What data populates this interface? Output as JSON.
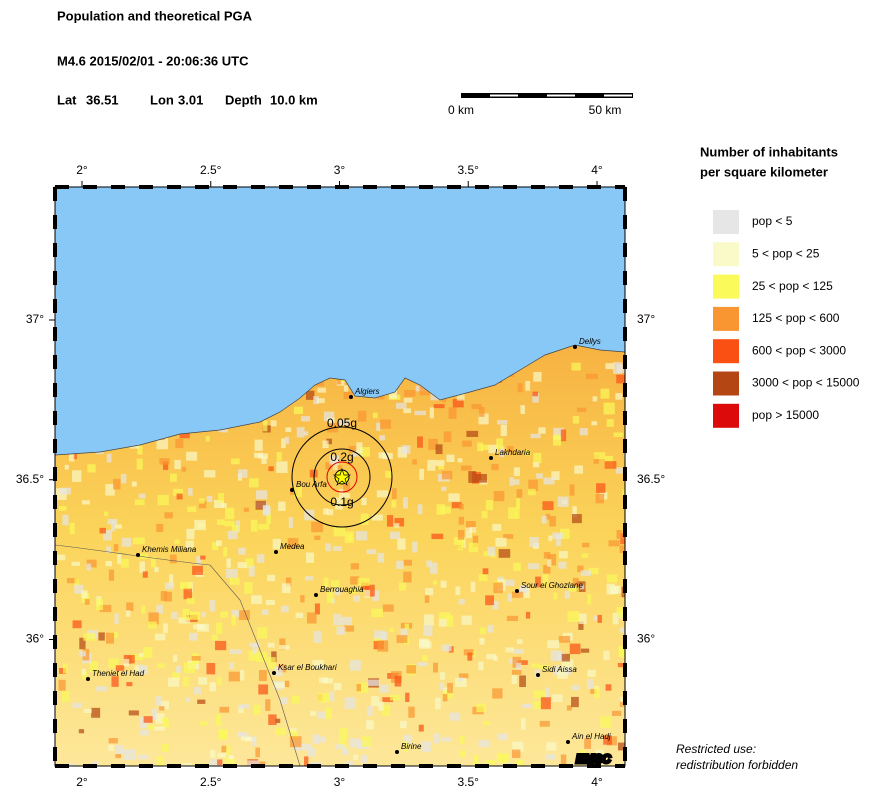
{
  "header": {
    "title": "Population and theoretical PGA",
    "event": "M4.6  2015/02/01 - 20:06:36 UTC",
    "lat_label": "Lat",
    "lat": "36.51",
    "lon_label": "Lon",
    "lon": "3.01",
    "depth_label": "Depth",
    "depth": "10.0 km"
  },
  "scale_bar": {
    "start": "0 km",
    "end": "50 km"
  },
  "map": {
    "lon_ticks": [
      {
        "value": 2,
        "label": "2°"
      },
      {
        "value": 2.5,
        "label": "2.5°"
      },
      {
        "value": 3,
        "label": "3°"
      },
      {
        "value": 3.5,
        "label": "3.5°"
      },
      {
        "value": 4,
        "label": "4°"
      }
    ],
    "lat_ticks": [
      {
        "value": 37,
        "label": "37°"
      },
      {
        "value": 36.5,
        "label": "36.5°"
      },
      {
        "value": 36,
        "label": "36°"
      }
    ],
    "cities": [
      "Algiers",
      "Dellys",
      "Lakhdaria",
      "Bou Arfa",
      "Khemis Miliana",
      "Medea",
      "Berrouaghia",
      "Sour el Ghozlane",
      "Theniet el Had",
      "Ksar el Boukhari",
      "Sidi Aissa",
      "Birine",
      "Ain el Hadj"
    ],
    "pga_labels": [
      "0.05g",
      "0.1g",
      "0.2g"
    ],
    "credit": "EMSC"
  },
  "legend": {
    "title_line1": "Number of inhabitants",
    "title_line2": "per square kilometer",
    "items": [
      {
        "label": "pop < 5",
        "color": "#e6e6e6"
      },
      {
        "label": "5 < pop < 25",
        "color": "#fafac8"
      },
      {
        "label": "25 < pop < 125",
        "color": "#fafa5a"
      },
      {
        "label": "125 < pop < 600",
        "color": "#fa9632"
      },
      {
        "label": "600 < pop < 3000",
        "color": "#fa5014"
      },
      {
        "label": "3000 < pop < 15000",
        "color": "#b44614"
      },
      {
        "label": "pop > 15000",
        "color": "#dc0a0a"
      }
    ]
  },
  "note": {
    "line1": "Restricted use:",
    "line2": "redistribution forbidden"
  }
}
